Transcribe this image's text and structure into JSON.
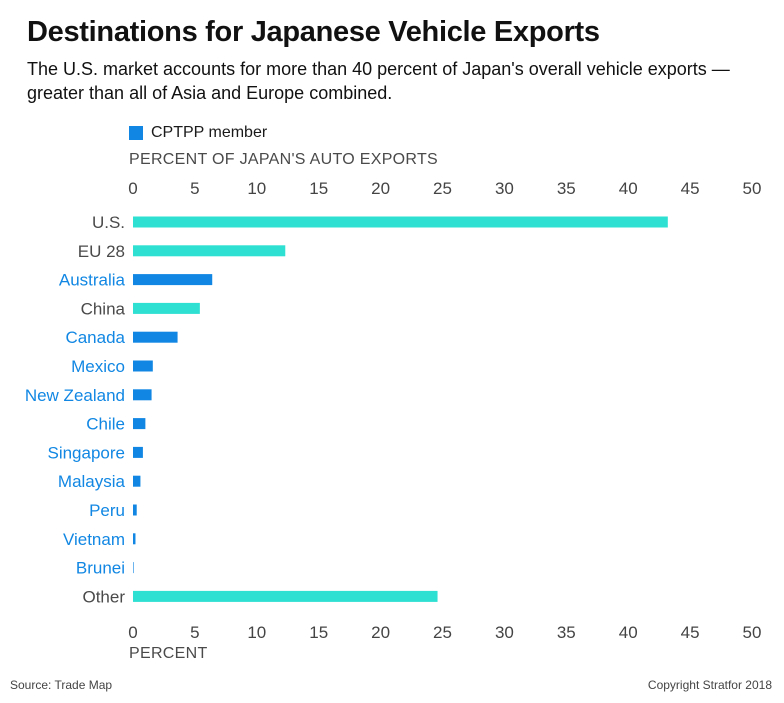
{
  "title": "Destinations for Japanese Vehicle Exports",
  "subtitle": "The U.S. market accounts for more than 40 percent of Japan's overall vehicle exports — greater than all of Asia and Europe combined.",
  "legend": {
    "label": "CPTPP member"
  },
  "source": "Source: Trade Map",
  "copyright": "Copyright Stratfor 2018",
  "colors": {
    "cptpp": "#1187e3",
    "non_member": "#2ee0d2",
    "cptpp_label": "#1187e3",
    "other_label": "#4a4a4a"
  },
  "chart_data": {
    "type": "bar",
    "orientation": "horizontal",
    "title": "Destinations for Japanese Vehicle Exports",
    "xlabel_top": "PERCENT OF JAPAN'S AUTO EXPORTS",
    "xlabel_bottom": "PERCENT",
    "xlim": [
      0,
      50
    ],
    "ticks": [
      0,
      5,
      10,
      15,
      20,
      25,
      30,
      35,
      40,
      45,
      50
    ],
    "grid": false,
    "legend_position": "top-left",
    "categories": [
      "U.S.",
      "EU 28",
      "Australia",
      "China",
      "Canada",
      "Mexico",
      "New Zealand",
      "Chile",
      "Singapore",
      "Malaysia",
      "Peru",
      "Vietnam",
      "Brunei",
      "Other"
    ],
    "values": [
      43.2,
      12.3,
      6.4,
      5.4,
      3.6,
      1.6,
      1.5,
      1.0,
      0.8,
      0.6,
      0.3,
      0.2,
      0.05,
      24.6
    ],
    "cptpp_member": [
      false,
      false,
      true,
      false,
      true,
      true,
      true,
      true,
      true,
      true,
      true,
      true,
      true,
      false
    ]
  }
}
